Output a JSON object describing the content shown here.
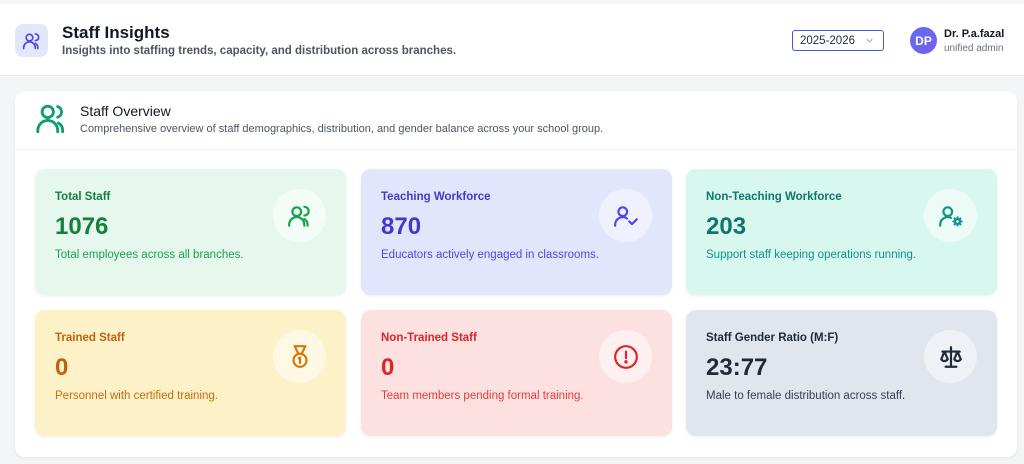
{
  "header": {
    "title": "Staff Insights",
    "subtitle": "Insights into staffing trends, capacity, and distribution across branches.",
    "year_select": "2025-2026",
    "user": {
      "initials": "DP",
      "name": "Dr. P.a.fazal",
      "role": "unified admin"
    }
  },
  "overview": {
    "title": "Staff Overview",
    "subtitle": "Comprehensive overview of staff demographics, distribution, and gender balance across your school group."
  },
  "cards": [
    {
      "label": "Total Staff",
      "value": "1076",
      "desc": "Total employees across all branches.",
      "icon": "users-icon",
      "color": "#15803d"
    },
    {
      "label": "Teaching Workforce",
      "value": "870",
      "desc": "Educators actively engaged in classrooms.",
      "icon": "user-check-icon",
      "color": "#4338ca"
    },
    {
      "label": "Non-Teaching Workforce",
      "value": "203",
      "desc": "Support staff keeping operations running.",
      "icon": "user-cog-icon",
      "color": "#0f766e"
    },
    {
      "label": "Trained Staff",
      "value": "0",
      "desc": "Personnel with certified training.",
      "icon": "medal-icon",
      "color": "#c2620c"
    },
    {
      "label": "Non-Trained Staff",
      "value": "0",
      "desc": "Team members pending formal training.",
      "icon": "alert-circle-icon",
      "color": "#dc2626"
    },
    {
      "label": "Staff Gender Ratio (M:F)",
      "value": "23:77",
      "desc": "Male to female distribution across staff.",
      "icon": "scale-icon",
      "color": "#1f2937"
    }
  ]
}
